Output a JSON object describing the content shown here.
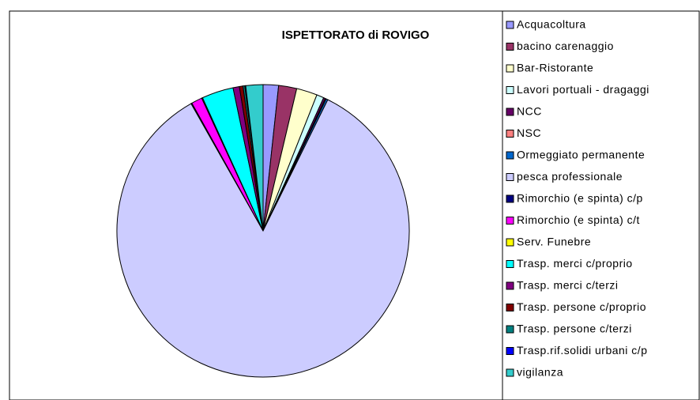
{
  "chart_data": {
    "type": "pie",
    "title": "ISPETTORATO di ROVIGO",
    "categories": [
      "Acquacoltura",
      "bacino carenaggio",
      "Bar-Ristorante",
      "Lavori portuali - dragaggi",
      "NCC",
      "NSC",
      "Ormeggiato permanente",
      "pesca professionale",
      "Rimorchio (e spinta) c/p",
      "Rimorchio (e spinta) c/t",
      "Serv. Funebre",
      "Trasp. merci c/proprio",
      "Trasp. merci c/terzi",
      "Trasp. persone c/proprio",
      "Trasp. persone c/terzi",
      "Trasp.rif.solidi urbani c/p",
      "vigilanza"
    ],
    "values": [
      1.7,
      2.0,
      2.3,
      0.8,
      0.2,
      0.1,
      0.2,
      84.5,
      0.1,
      1.2,
      0.1,
      3.5,
      0.7,
      0.4,
      0.2,
      0.1,
      1.9
    ],
    "colors": [
      "#9999FF",
      "#993366",
      "#FFFFCC",
      "#CCFFFF",
      "#660066",
      "#FF8080",
      "#0066CC",
      "#CCCCFF",
      "#000080",
      "#FF00FF",
      "#FFFF00",
      "#00FFFF",
      "#800080",
      "#800000",
      "#008080",
      "#0000FF",
      "#33CCCC"
    ],
    "legend": "right"
  }
}
